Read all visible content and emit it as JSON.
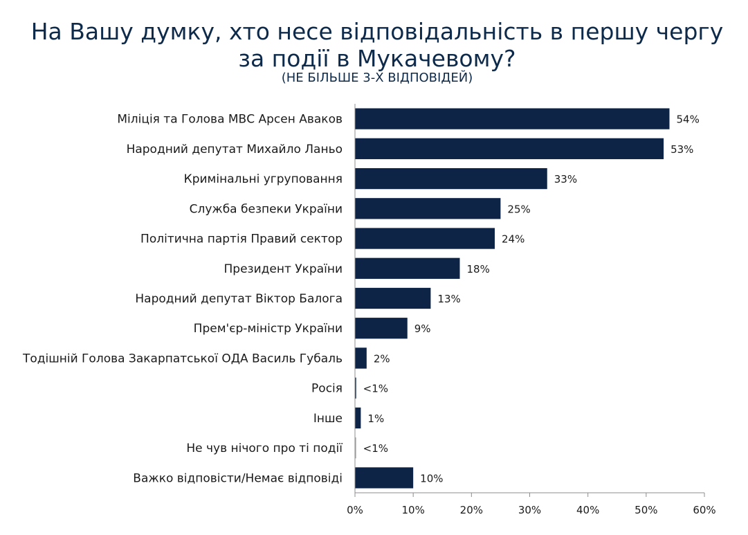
{
  "chart_data": {
    "type": "bar",
    "orientation": "horizontal",
    "title": "На Вашу думку, хто несе відповідальність в першу чергу за події в Мукачевому?",
    "subtitle": "(НЕ БІЛЬШЕ 3-Х ВІДПОВІДЕЙ)",
    "categories": [
      "Міліція та Голова МВС Арсен Аваков",
      "Народний депутат Михайло Ланьо",
      "Кримінальні угруповання",
      "Служба безпеки України",
      "Політична партія Правий сектор",
      "Президент України",
      "Народний депутат Віктор Балога",
      "Прем'єр-міністр України",
      "Тодішній Голова Закарпатської ОДА Василь Губаль",
      "Росія",
      "Інше",
      "Не чув нічого про ті події",
      "Важко відповісти/Немає відповіді"
    ],
    "values": [
      54,
      53,
      33,
      25,
      24,
      18,
      13,
      9,
      2,
      0.2,
      1,
      0.2,
      10
    ],
    "data_labels": [
      "54%",
      "53%",
      "33%",
      "25%",
      "24%",
      "18%",
      "13%",
      "9%",
      "2%",
      "<1%",
      "1%",
      "<1%",
      "10%"
    ],
    "xlim": [
      0,
      60
    ],
    "xticks": [
      "0%",
      "10%",
      "20%",
      "30%",
      "40%",
      "50%",
      "60%"
    ],
    "grid": false,
    "bar_color": "#0d2447",
    "bar_color_light": "#a8a8a8"
  }
}
